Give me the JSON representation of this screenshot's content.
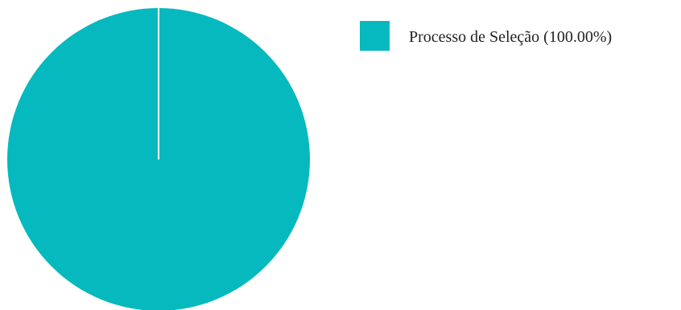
{
  "chart_data": {
    "type": "pie",
    "title": "",
    "slices": [
      {
        "label": "Processo de Seleção",
        "value": 100.0,
        "legend_text": "Processo de Seleção (100.00%)",
        "color": "#06B9BE"
      }
    ],
    "legend_position": "top-right"
  }
}
